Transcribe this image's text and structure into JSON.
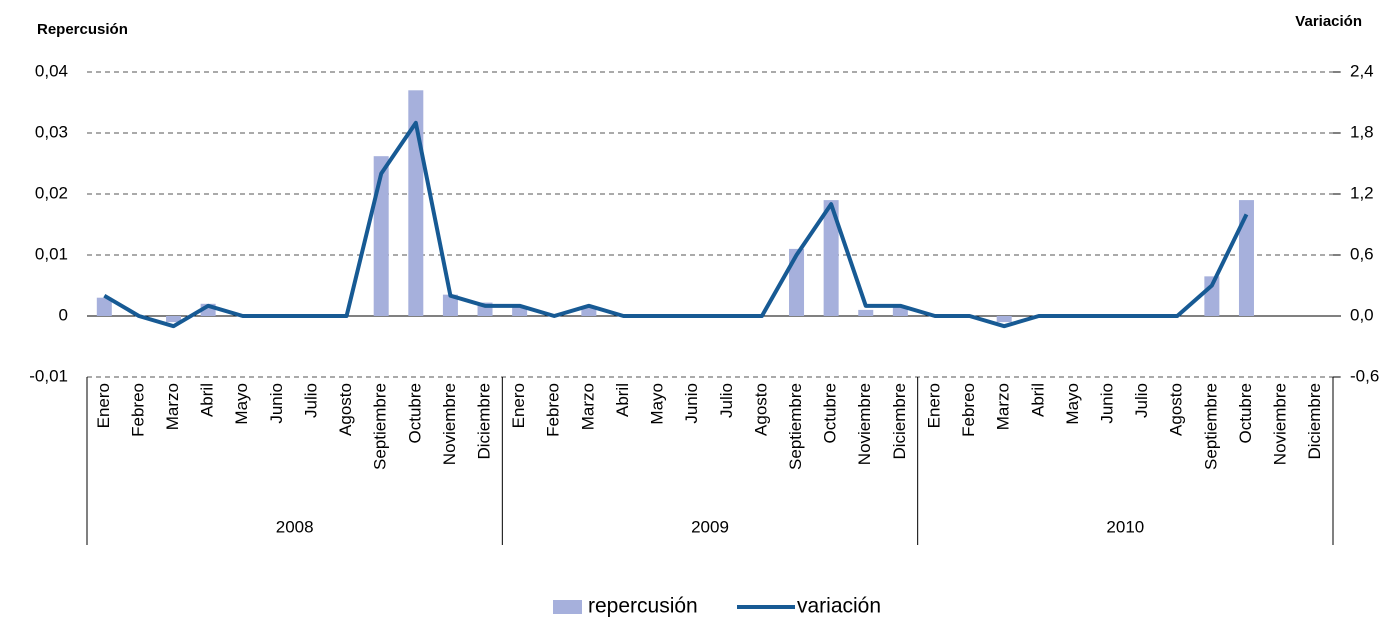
{
  "chart_data": {
    "type": "bar-line",
    "y_title": "Repercusión",
    "y2_title": "Variación",
    "categories": [
      "Enero",
      "Febreo",
      "Marzo",
      "Abril",
      "Mayo",
      "Junio",
      "Julio",
      "Agosto",
      "Septiembre",
      "Octubre",
      "Noviembre",
      "Diciembre",
      "Enero",
      "Febreo",
      "Marzo",
      "Abril",
      "Mayo",
      "Junio",
      "Julio",
      "Agosto",
      "Septiembre",
      "Octubre",
      "Noviembre",
      "Diciembre",
      "Enero",
      "Febreo",
      "Marzo",
      "Abril",
      "Mayo",
      "Junio",
      "Julio",
      "Agosto",
      "Septiembre",
      "Octubre",
      "Noviembre",
      "Diciembre"
    ],
    "groups": [
      "2008",
      "2009",
      "2010"
    ],
    "series": [
      {
        "name": "repercusión",
        "type": "bar",
        "color": "#a6b0dc",
        "values": [
          0.003,
          0,
          -0.001,
          0.002,
          0,
          0,
          0,
          0,
          0.0262,
          0.037,
          0.0035,
          0.0022,
          0.0015,
          0,
          0.0015,
          0,
          0,
          0,
          0,
          0,
          0.011,
          0.019,
          0.001,
          0.0015,
          0,
          0,
          -0.001,
          0,
          0,
          0,
          0,
          0,
          0.0065,
          0.019,
          null,
          null
        ]
      },
      {
        "name": "variación",
        "type": "line",
        "axis": "y2",
        "color": "#175a94",
        "values": [
          0.2,
          0,
          -0.1,
          0.1,
          0,
          0,
          0,
          0,
          1.4,
          1.9,
          0.2,
          0.1,
          0.1,
          0,
          0.1,
          0,
          0,
          0,
          0,
          0,
          0.6,
          1.1,
          0.1,
          0.1,
          0,
          0,
          -0.1,
          0,
          0,
          0,
          0,
          0,
          0.3,
          1.0,
          null,
          null
        ]
      }
    ],
    "ylim": [
      -0.01,
      0.04
    ],
    "yticks": [
      {
        "value": 0.04,
        "label": "0,04"
      },
      {
        "value": 0.03,
        "label": "0,03"
      },
      {
        "value": 0.02,
        "label": "0,02"
      },
      {
        "value": 0.01,
        "label": "0,01"
      },
      0,
      {
        "value": -0.01,
        "label": "-0,01"
      }
    ],
    "y2lim": [
      -0.6,
      2.4
    ],
    "y2ticks": [
      {
        "value": 2.4,
        "label": "2,4"
      },
      {
        "value": 1.8,
        "label": "1,8"
      },
      {
        "value": 1.2,
        "label": "1,2"
      },
      {
        "value": 0.6,
        "label": "0,6"
      },
      {
        "value": 0,
        "label": "0,0"
      },
      {
        "value": -0.6,
        "label": "-0,6"
      }
    ],
    "grid": true,
    "legend": "bottom"
  }
}
